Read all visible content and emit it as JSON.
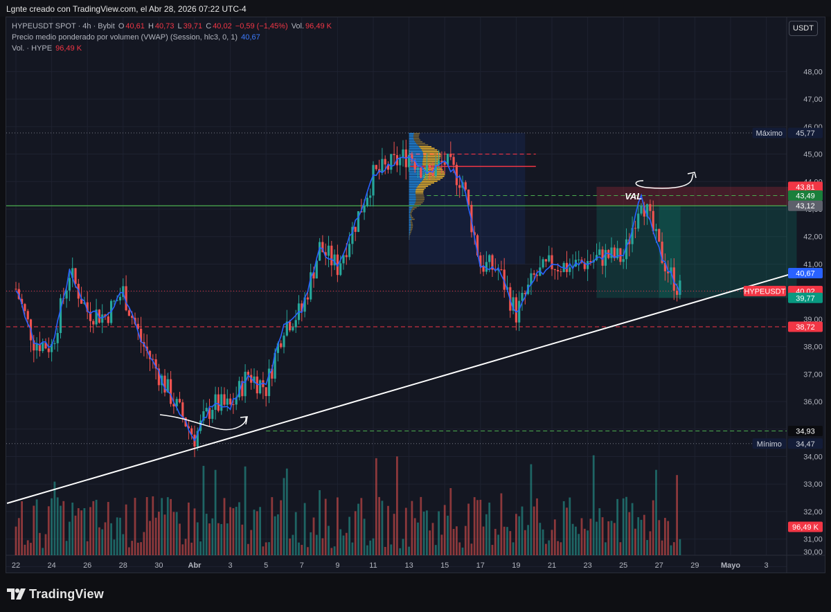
{
  "caption": "Lgnte creado con TradingView.com, el Abr 28, 2026 07:22 UTC-4",
  "legend": {
    "line1": {
      "symbol": "HYPEUSDT SPOT · 4h · Bybit",
      "o_label": "O",
      "o_value": "40,61",
      "h_label": "H",
      "h_value": "40,73",
      "l_label": "L",
      "l_value": "39,71",
      "c_label": "C",
      "c_value": "40,02",
      "change": "−0,59 (−1,45%)",
      "vol_label": "Vol.",
      "vol_value": "96,49 K"
    },
    "line2": {
      "label": "Precio medio ponderado por volumen (VWAP) (Session, hlc3, 0, 1)",
      "value": "40,67"
    },
    "line3": {
      "label": "Vol. · HYPE",
      "value": "96,49 K"
    }
  },
  "currency_button": "USDT",
  "brand": "TradingView",
  "colors": {
    "up": "#26a69a",
    "down": "#ef5350",
    "vwap": "#2962ff",
    "background": "#141722",
    "trendline": "#ffffff",
    "green_level": "#4caf50",
    "red_level": "#f23645"
  },
  "chart_data": {
    "type": "candlestick",
    "symbol": "HYPEUSDT",
    "timeframe": "4h",
    "y_axis": {
      "min": 30.0,
      "max": 48.8,
      "ticks": [
        "30,00",
        "31,00",
        "32,00",
        "33,00",
        "34,00",
        "35,00",
        "36,00",
        "37,00",
        "38,00",
        "39,00",
        "40,00",
        "41,00",
        "42,00",
        "43,00",
        "44,00",
        "45,00",
        "46,00",
        "47,00",
        "48,00"
      ]
    },
    "x_axis": {
      "labels": [
        "22",
        "24",
        "26",
        "28",
        "30",
        "Abr",
        "3",
        "5",
        "7",
        "9",
        "11",
        "13",
        "15",
        "17",
        "19",
        "21",
        "23",
        "25",
        "27",
        "29",
        "Mayo",
        "3"
      ],
      "label_days": [
        0,
        2,
        4,
        6,
        8,
        10,
        12,
        14,
        16,
        18,
        20,
        22,
        24,
        26,
        28,
        30,
        32,
        34,
        36,
        38,
        40,
        42
      ],
      "last_data_day": 37.2
    },
    "price_path_days": [
      0,
      1,
      2,
      3,
      4,
      5,
      6,
      7,
      8,
      9,
      10,
      11,
      12,
      13,
      14,
      15,
      16,
      17,
      18,
      19,
      20,
      21,
      22,
      23,
      24,
      25,
      26,
      27,
      28,
      29,
      30,
      31,
      32,
      33,
      34,
      35,
      36,
      36.5,
      37,
      37.2
    ],
    "price_path_close": [
      40.1,
      38.2,
      38.0,
      40.7,
      39.3,
      39.1,
      40.0,
      38.2,
      37.0,
      35.8,
      34.7,
      35.9,
      35.8,
      37.0,
      36.5,
      38.8,
      39.3,
      41.6,
      40.9,
      42.5,
      44.2,
      44.6,
      45.0,
      44.3,
      44.7,
      44.0,
      41.0,
      40.8,
      39.2,
      40.5,
      41.0,
      40.9,
      41.1,
      41.3,
      41.2,
      43.5,
      41.5,
      40.8,
      40.2,
      40.02
    ],
    "vwap_last": 40.67,
    "volume": {
      "last": "96,49 K",
      "note": "volume bars shown at bottom"
    },
    "price_labels": [
      {
        "text": "45,77",
        "value": 45.77,
        "kind": "max",
        "name": "Máximo"
      },
      {
        "text": "43,81",
        "value": 43.81,
        "kind": "red"
      },
      {
        "text": "43,49",
        "value": 43.49,
        "kind": "green"
      },
      {
        "text": "43,12",
        "value": 43.12,
        "kind": "gray"
      },
      {
        "text": "40,67",
        "value": 40.67,
        "kind": "blue"
      },
      {
        "text": "40,02",
        "value": 40.02,
        "kind": "red",
        "name": "HYPEUSDT"
      },
      {
        "text": "39,77",
        "value": 39.77,
        "kind": "teal"
      },
      {
        "text": "38,72",
        "value": 38.72,
        "kind": "red"
      },
      {
        "text": "34,93",
        "value": 34.93,
        "kind": "black"
      },
      {
        "text": "34,47",
        "value": 34.47,
        "kind": "min",
        "name": "Mínimo"
      },
      {
        "text": "96,49 K",
        "value": null,
        "kind": "volume"
      }
    ],
    "horizontal_levels": [
      {
        "value": 45.77,
        "style": "dotted",
        "color": "#787b86"
      },
      {
        "value": 43.12,
        "style": "solid",
        "color": "#4caf50"
      },
      {
        "value": 43.49,
        "style": "dashed",
        "color": "#4caf50",
        "from_day": 23
      },
      {
        "value": 38.72,
        "style": "dashed",
        "color": "#f23645"
      },
      {
        "value": 40.02,
        "style": "dotted",
        "color": "#f23645"
      },
      {
        "value": 34.93,
        "style": "dashed",
        "color": "#4caf50",
        "from_day": 14
      },
      {
        "value": 34.47,
        "style": "dotted",
        "color": "#787b86"
      }
    ],
    "trendline": {
      "from_day": -0.5,
      "from_price": 32.3,
      "to_day": 43.7,
      "to_price": 40.7
    },
    "volume_profile": {
      "from_day": 22,
      "to_day": 28.5,
      "top": 45.77,
      "bottom": 41.0,
      "poc": 44.55,
      "vah": 45.0
    },
    "position_box": {
      "from_day": 32.5,
      "to_day": 43.7,
      "entry": 43.12,
      "stop": 43.81,
      "target": 39.77
    },
    "annotations": [
      {
        "text": "VAL",
        "day": 34,
        "price": 43.45
      }
    ]
  }
}
